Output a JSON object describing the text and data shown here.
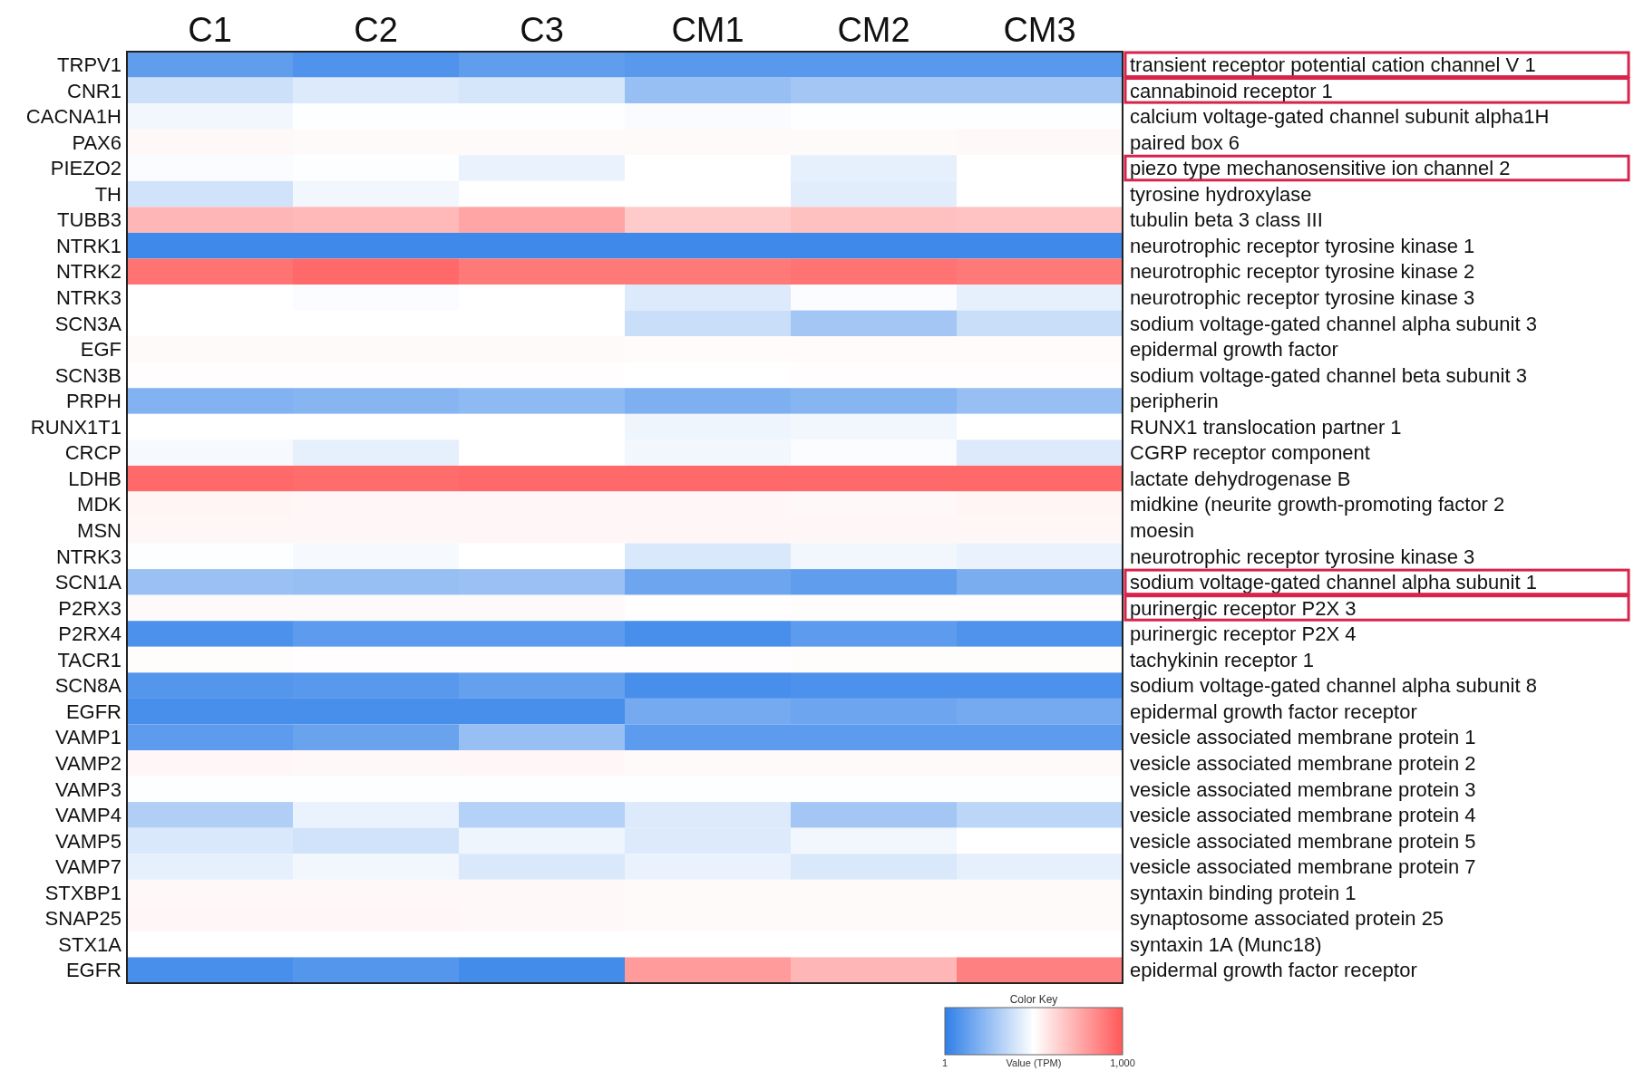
{
  "chart_data": {
    "type": "heatmap",
    "categories": [
      "C1",
      "C2",
      "C3",
      "CM1",
      "CM2",
      "CM3"
    ],
    "y_categories": [
      "TRPV1",
      "CNR1",
      "CACNA1H",
      "PAX6",
      "PIEZO2",
      "TH",
      "TUBB3",
      "NTRK1",
      "NTRK2",
      "NTRK3",
      "SCN3A",
      "EGF",
      "SCN3B",
      "PRPH",
      "RUNX1T1",
      "CRCP",
      "LDHB",
      "MDK",
      "MSN",
      "NTRK3",
      "SCN1A",
      "P2RX3",
      "P2RX4",
      "TACR1",
      "SCN8A",
      "EGFR",
      "VAMP1",
      "VAMP2",
      "VAMP3",
      "VAMP4",
      "VAMP5",
      "VAMP7",
      "STXBP1",
      "SNAP25",
      "STX1A",
      "EGFR"
    ],
    "y2_categories": [
      "transient receptor potential cation channel V 1",
      "cannabinoid receptor 1",
      "calcium voltage-gated channel subunit alpha1H",
      "paired box 6",
      "piezo type mechanosensitive ion channel 2",
      "tyrosine hydroxylase",
      "tubulin beta 3 class III",
      "neurotrophic receptor tyrosine kinase 1",
      "neurotrophic receptor tyrosine kinase 2",
      "neurotrophic receptor tyrosine kinase 3",
      "sodium voltage-gated channel alpha subunit 3",
      "epidermal growth factor",
      "sodium voltage-gated channel beta subunit 3",
      "peripherin",
      "RUNX1 translocation partner 1",
      "CGRP receptor component",
      "lactate dehydrogenase B",
      "midkine (neurite growth-promoting factor 2",
      "moesin",
      "neurotrophic receptor tyrosine kinase 3",
      "sodium voltage-gated channel alpha subunit 1",
      "purinergic receptor P2X 3",
      "purinergic receptor P2X 4",
      "tachykinin receptor 1",
      "sodium voltage-gated channel alpha subunit 8",
      "epidermal growth factor receptor",
      "vesicle associated membrane protein 1",
      "vesicle associated membrane protein 2",
      "vesicle associated membrane protein 3",
      "vesicle associated membrane protein 4",
      "vesicle associated membrane protein 5",
      "vesicle associated membrane protein 7",
      "syntaxin binding protein 1",
      "synaptosome associated protein 25",
      "syntaxin 1A (Munc18)",
      "epidermal growth factor receptor"
    ],
    "cells": [
      [
        120,
        80,
        120,
        100,
        100,
        100
      ],
      [
        380,
        420,
        400,
        250,
        280,
        280
      ],
      [
        470,
        495,
        495,
        485,
        495,
        495
      ],
      [
        520,
        515,
        515,
        515,
        515,
        520
      ],
      [
        490,
        495,
        450,
        500,
        440,
        500
      ],
      [
        390,
        470,
        500,
        500,
        430,
        500
      ],
      [
        720,
        710,
        770,
        660,
        690,
        680
      ],
      [
        40,
        40,
        40,
        40,
        40,
        40
      ],
      [
        920,
        950,
        900,
        900,
        920,
        900
      ],
      [
        500,
        490,
        500,
        420,
        490,
        440
      ],
      [
        500,
        500,
        500,
        370,
        280,
        370
      ],
      [
        515,
        515,
        515,
        512,
        512,
        512
      ],
      [
        505,
        505,
        505,
        500,
        505,
        505
      ],
      [
        200,
        210,
        230,
        190,
        210,
        250
      ],
      [
        500,
        500,
        500,
        460,
        470,
        500
      ],
      [
        480,
        440,
        500,
        470,
        490,
        420
      ],
      [
        950,
        940,
        950,
        950,
        950,
        950
      ],
      [
        530,
        525,
        525,
        525,
        520,
        530
      ],
      [
        525,
        525,
        525,
        525,
        525,
        525
      ],
      [
        495,
        480,
        500,
        410,
        470,
        450
      ],
      [
        260,
        250,
        260,
        150,
        120,
        180
      ],
      [
        515,
        515,
        515,
        505,
        510,
        510
      ],
      [
        70,
        110,
        110,
        60,
        110,
        80
      ],
      [
        510,
        505,
        505,
        505,
        510,
        510
      ],
      [
        90,
        100,
        130,
        60,
        70,
        70
      ],
      [
        60,
        60,
        60,
        170,
        150,
        170
      ],
      [
        110,
        140,
        250,
        110,
        110,
        110
      ],
      [
        525,
        520,
        525,
        515,
        515,
        515
      ],
      [
        495,
        495,
        495,
        495,
        495,
        495
      ],
      [
        310,
        450,
        320,
        420,
        280,
        340
      ],
      [
        410,
        390,
        460,
        420,
        470,
        500
      ],
      [
        440,
        470,
        410,
        450,
        410,
        440
      ],
      [
        520,
        520,
        520,
        515,
        515,
        515
      ],
      [
        525,
        525,
        520,
        515,
        515,
        515
      ],
      [
        500,
        500,
        500,
        500,
        500,
        500
      ],
      [
        60,
        90,
        50,
        800,
        720,
        880
      ]
    ],
    "clim": [
      1,
      1000
    ],
    "cticks": [
      1,
      {
        "value": 1000,
        "label": "1,000"
      }
    ],
    "clabel": "Value (TPM)",
    "legend_title": "Color Key"
  }
}
